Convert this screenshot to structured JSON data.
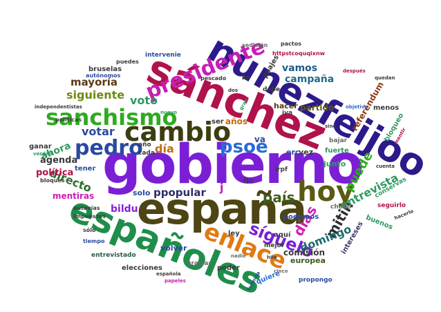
{
  "words": [
    {
      "text": "gobierno",
      "color": "#7b1fd6"
    },
    {
      "text": "españa",
      "color": "#4d4513"
    },
    {
      "text": "sánchez",
      "color": "#b0124b"
    },
    {
      "text": "nunezfeijoo",
      "color": "#2d1a8a"
    },
    {
      "text": "españoles",
      "color": "#1f8e4a"
    },
    {
      "text": "cambio",
      "color": "#3d3d10"
    },
    {
      "text": "hoy",
      "color": "#5a5a14"
    },
    {
      "text": "sanchismo",
      "color": "#2eab20"
    },
    {
      "text": "presidente",
      "color": "#c51fb5"
    },
    {
      "text": "enlace",
      "color": "#e07a12"
    },
    {
      "text": "pedro",
      "color": "#2a4aa0"
    },
    {
      "text": "síguelo",
      "color": "#7b1fd6"
    },
    {
      "text": "psoe",
      "color": "#2a6bd6"
    },
    {
      "text": "país",
      "color": "#3e5e1a"
    },
    {
      "text": "días",
      "color": "#d01fb2"
    },
    {
      "text": "mitin",
      "color": "#2e2e2e"
    },
    {
      "text": "puede",
      "color": "#2eab20"
    },
    {
      "text": "entrevista",
      "color": "#2e9a60"
    },
    {
      "text": "domingo",
      "color": "#1d6a6a"
    },
    {
      "text": "campaña",
      "color": "#1d6a8a"
    },
    {
      "text": "vamos",
      "color": "#1d5a8a"
    },
    {
      "text": "directo",
      "color": "#2d6d2d"
    },
    {
      "text": "votar",
      "color": "#2a4aa0"
    },
    {
      "text": "ppopular",
      "color": "#2d2d6a"
    },
    {
      "text": "siguiente",
      "color": "#6d8a10"
    },
    {
      "text": "voto",
      "color": "#2e9a60"
    },
    {
      "text": "mayoría",
      "color": "#5a3a14"
    },
    {
      "text": "día",
      "color": "#c26a12"
    },
    {
      "text": "bildu",
      "color": "#8a1fd6"
    },
    {
      "text": "ahora",
      "color": "#2e9a60"
    },
    {
      "text": "agenda",
      "color": "#3a3a3a"
    },
    {
      "text": "política",
      "color": "#b0124b"
    },
    {
      "text": "mentiras",
      "color": "#c51fb5"
    },
    {
      "text": "partido",
      "color": "#5a5a14"
    },
    {
      "text": "referéndum",
      "color": "#8a3a14"
    },
    {
      "text": "comisión",
      "color": "#3a3a3a"
    },
    {
      "text": "europea",
      "color": "#3a5a1a"
    },
    {
      "text": "buenos",
      "color": "#2e9a60"
    },
    {
      "text": "intereses",
      "color": "#3a3a6a"
    },
    {
      "text": "propongo",
      "color": "#2a4aa0"
    },
    {
      "text": "quiere",
      "color": "#2a6bd6"
    },
    {
      "text": "poder",
      "color": "#3a3a3a"
    },
    {
      "text": "gracias",
      "color": "#6a6a6a"
    },
    {
      "text": "elecciones",
      "color": "#3a3a3a"
    },
    {
      "text": "entrevistado",
      "color": "#2a5a4a"
    },
    {
      "text": "volver",
      "color": "#2a4aa0"
    },
    {
      "text": "solo",
      "color": "#2a4aa0"
    },
    {
      "text": "junto",
      "color": "#2e9a60"
    },
    {
      "text": "fuerte",
      "color": "#2e9a60"
    },
    {
      "text": "bajar",
      "color": "#6a6a6a"
    },
    {
      "text": "hacer",
      "color": "#5a3a14"
    },
    {
      "text": "peajes",
      "color": "#3a3a3a"
    },
    {
      "text": "podemos",
      "color": "#2a4aa0"
    },
    {
      "text": "bruselas",
      "color": "#3a3a3a"
    },
    {
      "text": "intervenie",
      "color": "#2a4aa0"
    },
    {
      "text": "años",
      "color": "#c26a12"
    },
    {
      "text": "fin",
      "color": "#3a3a3a"
    },
    {
      "text": "erc",
      "color": "#2a4aa0"
    },
    {
      "text": "vez",
      "color": "#3a3a3a"
    },
    {
      "text": "va",
      "color": "#2a4aa0"
    },
    {
      "text": "ser",
      "color": "#3a3a3a"
    },
    {
      "text": "ley",
      "color": "#3a3a3a"
    },
    {
      "text": "aquí",
      "color": "#3a3a3a"
    },
    {
      "text": "menos",
      "color": "#3a3a3a"
    },
    {
      "text": "bloqueo",
      "color": "#2e9a60"
    },
    {
      "text": "tener",
      "color": "#2a4aa0"
    },
    {
      "text": "ganar",
      "color": "#3a3a3a"
    },
    {
      "text": "cada",
      "color": "#3a3a3a"
    },
    {
      "text": "año",
      "color": "#3a3a3a"
    },
    {
      "text": "conservas",
      "color": "#2e9a60"
    },
    {
      "text": "seguirlo",
      "color": "#b0124b"
    },
    {
      "text": "chollo",
      "color": "#6a6a6a"
    },
    {
      "text": "mejor",
      "color": "#3a3a3a"
    },
    {
      "text": "iva",
      "color": "#3a3a3a"
    },
    {
      "text": "irpf",
      "color": "#3a3a3a"
    },
    {
      "text": "debe",
      "color": "#3a3a3a"
    },
    {
      "text": "políticas",
      "color": "#3a3a3a"
    },
    {
      "text": "autónomos",
      "color": "#2a4aa0"
    },
    {
      "text": "autovías",
      "color": "#3a3a3a"
    },
    {
      "text": "impuestos",
      "color": "#3a3a3a"
    },
    {
      "text": "bloques",
      "color": "#3a3a3a"
    },
    {
      "text": "tiempo",
      "color": "#2a4aa0"
    },
    {
      "text": "sólo",
      "color": "#3a3a3a"
    },
    {
      "text": "pescado",
      "color": "#3a3a3a"
    },
    {
      "text": "pp",
      "color": "#3a3a3a"
    },
    {
      "text": "sedición",
      "color": "#6a6a6a"
    },
    {
      "text": "pactos",
      "color": "#3a3a3a"
    },
    {
      "text": "httpstcoquqixnw",
      "color": "#b0124b"
    },
    {
      "text": "independentistas",
      "color": "#3a3a3a"
    },
    {
      "text": "después",
      "color": "#b0124b"
    },
    {
      "text": "quedan",
      "color": "#3a3a3a"
    },
    {
      "text": "mentir",
      "color": "#b0124b"
    },
    {
      "text": "española",
      "color": "#3a3a3a"
    },
    {
      "text": "papeles",
      "color": "#c51fb5"
    },
    {
      "text": "puedes",
      "color": "#3a3a3a"
    },
    {
      "text": "nuevo",
      "color": "#2e9a60"
    },
    {
      "text": "hacerlo",
      "color": "#3a3a3a"
    },
    {
      "text": "cinco",
      "color": "#6a6a6a"
    },
    {
      "text": "verdad",
      "color": "#2e9a60"
    },
    {
      "text": "termina",
      "color": "#2a4aa0"
    },
    {
      "text": "j",
      "color": "#c51fb5"
    },
    {
      "text": "gran",
      "color": "#2e9a60"
    },
    {
      "text": "dos",
      "color": "#3a3a3a"
    },
    {
      "text": "hilo",
      "color": "#3a3a3a"
    },
    {
      "text": "nadie",
      "color": "#6a6a6a"
    },
    {
      "text": "cuenta",
      "color": "#3a3a3a"
    },
    {
      "text": "objetivo",
      "color": "#2a6bd6"
    },
    {
      "text": "sino",
      "color": "#3a3a3a"
    }
  ]
}
